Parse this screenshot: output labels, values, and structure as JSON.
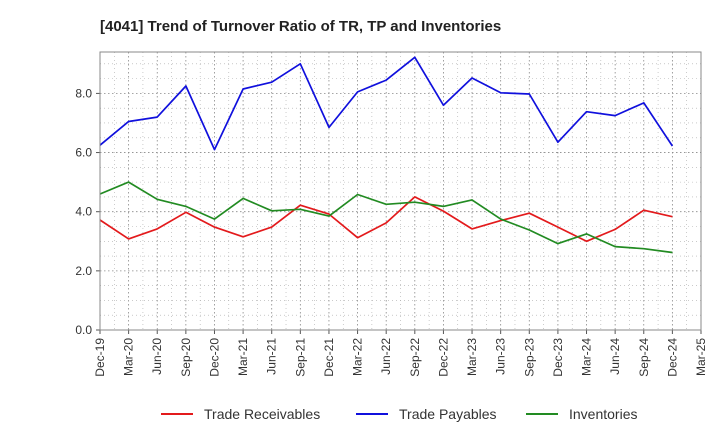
{
  "chart_data": {
    "type": "line",
    "title": "[4041]  Trend of Turnover Ratio of TR, TP and Inventories",
    "xlabel": "",
    "ylabel": "",
    "x": [
      "Dec-19",
      "Mar-20",
      "Jun-20",
      "Sep-20",
      "Dec-20",
      "Mar-21",
      "Jun-21",
      "Sep-21",
      "Dec-21",
      "Mar-22",
      "Jun-22",
      "Sep-22",
      "Dec-22",
      "Mar-23",
      "Jun-23",
      "Sep-23",
      "Dec-23",
      "Mar-24",
      "Jun-24",
      "Sep-24",
      "Dec-24",
      "Mar-25"
    ],
    "ylim": [
      0,
      9.4
    ],
    "yticks": [
      "0.0",
      "2.0",
      "4.0",
      "6.0",
      "8.0"
    ],
    "grid": true,
    "legend_position": "bottom",
    "series": [
      {
        "name": "Trade Receivables",
        "color": "#e31a1c",
        "values": [
          3.72,
          3.08,
          3.42,
          3.98,
          3.48,
          3.15,
          3.48,
          4.22,
          3.92,
          3.12,
          3.62,
          4.5,
          4.02,
          3.42,
          3.7,
          3.95,
          3.48,
          3.0,
          3.4,
          4.05,
          3.83,
          null
        ]
      },
      {
        "name": "Trade Payables",
        "color": "#1010dd",
        "values": [
          6.25,
          7.05,
          7.2,
          8.25,
          6.1,
          8.15,
          8.38,
          9.0,
          6.85,
          8.05,
          8.45,
          9.22,
          7.6,
          8.52,
          8.02,
          7.98,
          6.35,
          7.38,
          7.25,
          7.68,
          6.22,
          null
        ]
      },
      {
        "name": "Inventories",
        "color": "#228b22",
        "values": [
          4.6,
          5.0,
          4.42,
          4.18,
          3.75,
          4.45,
          4.03,
          4.08,
          3.85,
          4.58,
          4.25,
          4.32,
          4.18,
          4.4,
          3.75,
          3.38,
          2.92,
          3.25,
          2.82,
          2.75,
          2.62,
          null
        ]
      }
    ]
  }
}
